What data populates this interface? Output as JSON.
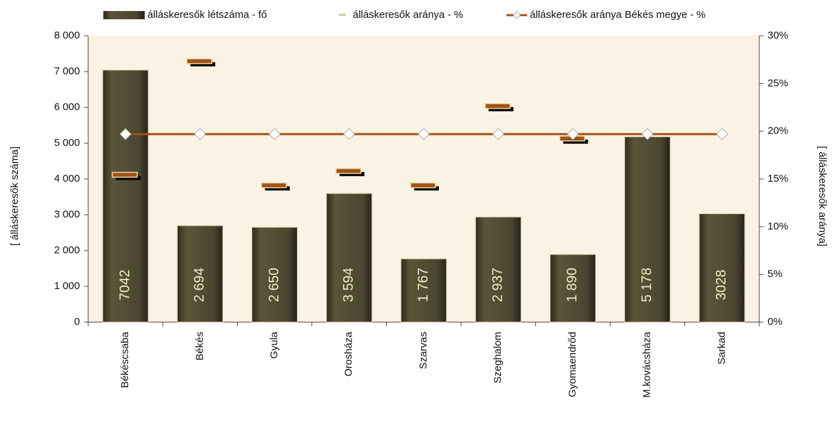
{
  "chart_data": {
    "type": "bar",
    "categories": [
      "Békéscsaba",
      "Békés",
      "Gyula",
      "Orosháza",
      "Szarvas",
      "Szeghalom",
      "Gyomaendrőd",
      "M.kovácsháza",
      "Sarkad"
    ],
    "series": [
      {
        "name": "álláskeresők létszáma - fő",
        "color": "#4a4630",
        "values": [
          7042,
          2694,
          2650,
          3594,
          1767,
          2937,
          1890,
          5178,
          3028
        ],
        "value_labels": [
          "7042",
          "2 694",
          "2 650",
          "3 594",
          "1 767",
          "2 937",
          "1 890",
          "5 178",
          "3028"
        ]
      },
      {
        "name": "álláskeresők aránya - %",
        "color": "#a0520f",
        "axis": "y2",
        "values": [
          15.4,
          27.3,
          14.3,
          15.8,
          14.3,
          22.6,
          19.2,
          null,
          null
        ]
      },
      {
        "name": "álláskeresők aránya Békés megye - %",
        "color": "#a0520f",
        "axis": "y2",
        "values": [
          19.7,
          19.7,
          19.7,
          19.7,
          19.7,
          19.7,
          19.7,
          19.7,
          19.7
        ]
      }
    ],
    "ylabel": "[ álláskeresők száma]",
    "y2label": "[ álláskeresők aránya]",
    "ylim": [
      0,
      8000
    ],
    "yticks": [
      0,
      {
        "value": 1000,
        "label": "1 000"
      },
      {
        "value": 2000,
        "label": "2 000"
      },
      {
        "value": 3000,
        "label": "3 000"
      },
      {
        "value": 4000,
        "label": "4 000"
      },
      {
        "value": 5000,
        "label": "5 000"
      },
      {
        "value": 6000,
        "label": "6 000"
      },
      {
        "value": 7000,
        "label": "7 000"
      },
      {
        "value": 8000,
        "label": "8 000"
      }
    ],
    "y2lim": [
      0,
      30
    ],
    "y2ticks": [
      {
        "value": 0,
        "label": "0%"
      },
      {
        "value": 5,
        "label": "5%"
      },
      {
        "value": 10,
        "label": "10%"
      },
      {
        "value": 15,
        "label": "15%"
      },
      {
        "value": 20,
        "label": "20%"
      },
      {
        "value": 25,
        "label": "25%"
      },
      {
        "value": 30,
        "label": "30%"
      }
    ],
    "legend": "top"
  }
}
